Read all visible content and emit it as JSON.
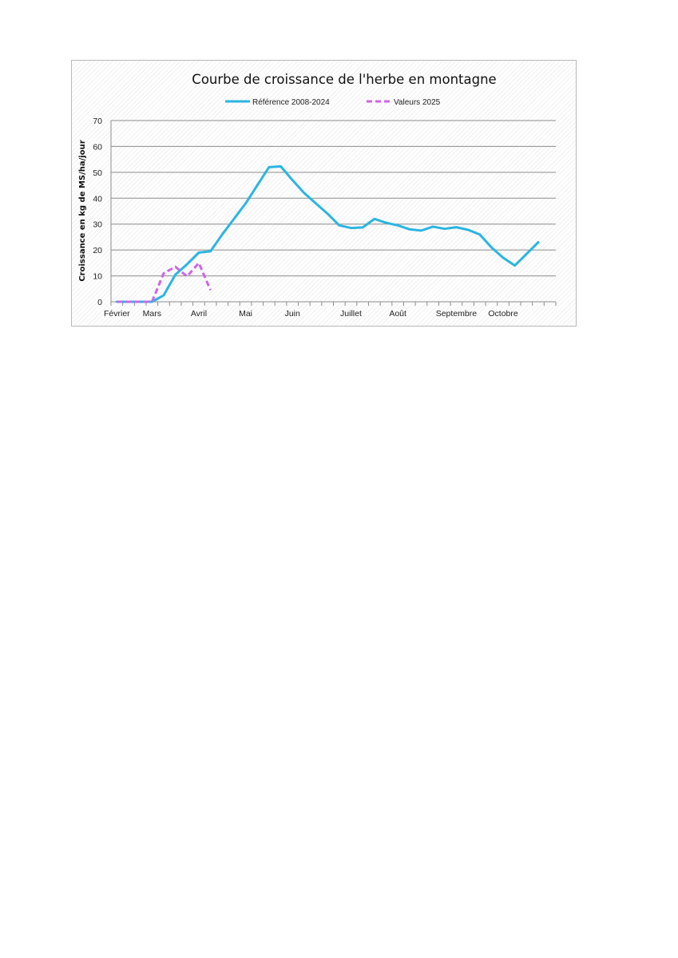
{
  "chart_data": {
    "type": "line",
    "title": "Courbe de croissance de l'herbe en montagne",
    "xlabel": "",
    "ylabel": "Croissance en kg de MS/ha/jour",
    "ylim": [
      0,
      70
    ],
    "yticks": [
      0,
      10,
      20,
      30,
      40,
      50,
      60,
      70
    ],
    "x_period_count": 38,
    "month_labels": [
      {
        "label": "Février",
        "x": 0
      },
      {
        "label": "Mars",
        "x": 3
      },
      {
        "label": "Avril",
        "x": 7
      },
      {
        "label": "Mai",
        "x": 11
      },
      {
        "label": "Juin",
        "x": 15
      },
      {
        "label": "Juillet",
        "x": 20
      },
      {
        "label": "Août",
        "x": 24
      },
      {
        "label": "Septembre",
        "x": 29
      },
      {
        "label": "Octobre",
        "x": 33
      }
    ],
    "grid": "horizontal",
    "legend_position": "top",
    "series": [
      {
        "name": "Référence 2008-2024",
        "color": "#2bb5e2",
        "style": "solid",
        "x": [
          0,
          1,
          2,
          3,
          4,
          5,
          6,
          7,
          8,
          9,
          10,
          11,
          12,
          13,
          14,
          15,
          16,
          17,
          18,
          19,
          20,
          21,
          22,
          23,
          24,
          25,
          26,
          27,
          28,
          29,
          30,
          31,
          32,
          33,
          34,
          35,
          36
        ],
        "values": [
          0,
          0,
          0,
          0,
          2.5,
          10.5,
          14.5,
          19,
          19.5,
          26,
          32,
          38,
          45,
          52,
          52.3,
          47,
          42,
          38,
          34,
          29.5,
          28.5,
          28.7,
          32,
          30.5,
          29.5,
          28,
          27.5,
          29,
          28.2,
          28.8,
          27.8,
          26,
          21,
          17,
          14,
          18.5,
          23
        ]
      },
      {
        "name": "Valeurs 2025",
        "color": "#cc66e6",
        "style": "dashed",
        "x": [
          0,
          1,
          2,
          3,
          4,
          5,
          6,
          7,
          8
        ],
        "values": [
          0,
          0,
          0,
          0,
          11,
          13.5,
          9.8,
          15,
          4.5
        ]
      }
    ]
  }
}
